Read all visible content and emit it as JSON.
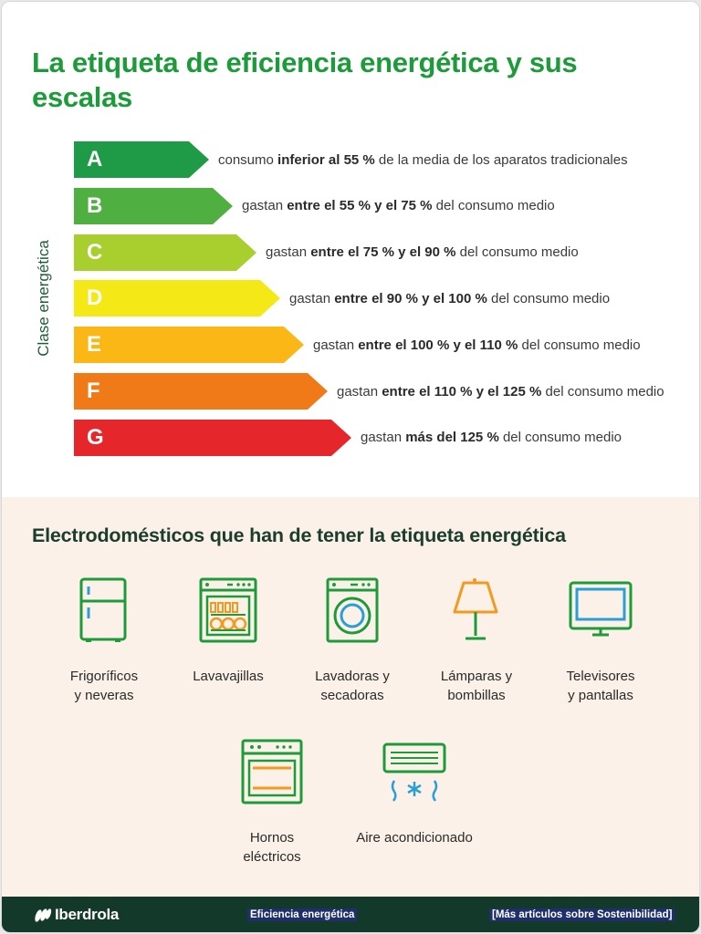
{
  "header": {
    "title_pre": "La ",
    "title_bold": "etiqueta de eficiencia energética",
    "title_post": " y sus escalas"
  },
  "scale": {
    "axis_label": "Clase energética",
    "classes": [
      {
        "letter": "A",
        "color": "#1f9a46",
        "d1": "consumo ",
        "b": "inferior al 55 %",
        "d2": " de la media de los aparatos tradicionales"
      },
      {
        "letter": "B",
        "color": "#4fb041",
        "d1": "gastan ",
        "b": "entre el 55 % y el 75 %",
        "d2": " del consumo medio"
      },
      {
        "letter": "C",
        "color": "#a8cf2e",
        "d1": "gastan ",
        "b": "entre el 75 % y el 90 %",
        "d2": " del consumo medio"
      },
      {
        "letter": "D",
        "color": "#f4e816",
        "d1": "gastan ",
        "b": "entre el 90 % y el 100 %",
        "d2": " del consumo medio"
      },
      {
        "letter": "E",
        "color": "#fbb715",
        "d1": "gastan ",
        "b": "entre el 100 % y el 110 %",
        "d2": " del consumo medio"
      },
      {
        "letter": "F",
        "color": "#f07a18",
        "d1": "gastan ",
        "b": "entre el 110 % y el 125 %",
        "d2": " del consumo medio"
      },
      {
        "letter": "G",
        "color": "#e5262a",
        "d1": "gastan ",
        "b": "más del 125 %",
        "d2": " del consumo medio"
      }
    ]
  },
  "appliances_section": {
    "title_pre": "Electrodomésticos ",
    "title_bold": "que han de tener",
    "title_post": " la etiqueta energética",
    "items": [
      {
        "line1": "Frigoríficos",
        "line2": "y neveras",
        "icon": "fridge-icon"
      },
      {
        "line1": "Lavavajillas",
        "line2": "",
        "icon": "dishwasher-icon"
      },
      {
        "line1": "Lavadoras y",
        "line2": "secadoras",
        "icon": "washing-machine-icon"
      },
      {
        "line1": "Lámparas y",
        "line2": "bombillas",
        "icon": "lamp-icon"
      },
      {
        "line1": "Televisores",
        "line2": "y pantallas",
        "icon": "tv-icon"
      },
      {
        "line1": "Hornos",
        "line2": "eléctricos",
        "icon": "oven-icon"
      },
      {
        "line1": "Aire acondicionado",
        "line2": "",
        "icon": "air-conditioner-icon"
      }
    ]
  },
  "colors": {
    "green": "#1d9b3a",
    "orange": "#f29a1f",
    "blue": "#2a9fd6",
    "footer": "#12392a"
  },
  "footer": {
    "brand": "Iberdrola",
    "link1": "Eficiencia energética",
    "link2": "[Más artículos sobre Sostenibilidad]"
  }
}
